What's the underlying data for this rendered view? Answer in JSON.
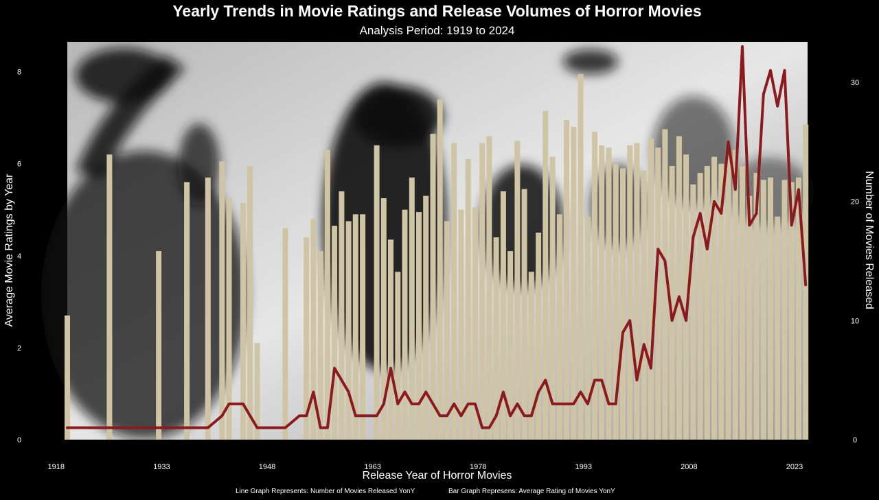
{
  "chart_data": {
    "type": "bar+line",
    "title": "Yearly Trends in Movie Ratings and Release Volumes of Horror Movies",
    "subtitle": "Analysis Period: 1919 to 2024",
    "xlabel": "Release Year of Horror Movies",
    "ylabel_left": "Average Movie Ratings by Year",
    "ylabel_right": "Number of Movies Released",
    "captions": {
      "line": "Line Graph Represents: Number of Movies Released YonY",
      "bar": "Bar Graph Represens: Average Rating of Movies YonY"
    },
    "x_ticks": [
      1918,
      1933,
      1948,
      1963,
      1978,
      1993,
      2008,
      2023
    ],
    "y_left_ticks": [
      0,
      2,
      4,
      6,
      8
    ],
    "y_right_ticks": [
      0,
      10,
      20,
      30
    ],
    "y_left_range": [
      0,
      8.65
    ],
    "y_right_range": [
      0,
      33.4
    ],
    "x_range": [
      1918,
      2024
    ],
    "colors": {
      "bars": "#cfc5a5",
      "line": "#8b1a1e",
      "background": "#000000"
    },
    "bars": [
      {
        "year": 1919,
        "rating": 2.7
      },
      {
        "year": 1925,
        "rating": 6.2
      },
      {
        "year": 1932,
        "rating": 4.1
      },
      {
        "year": 1936,
        "rating": 5.6
      },
      {
        "year": 1939,
        "rating": 5.7
      },
      {
        "year": 1941,
        "rating": 6.05
      },
      {
        "year": 1942,
        "rating": 5.25
      },
      {
        "year": 1944,
        "rating": 5.15
      },
      {
        "year": 1945,
        "rating": 5.95
      },
      {
        "year": 1946,
        "rating": 2.1
      },
      {
        "year": 1950,
        "rating": 4.6
      },
      {
        "year": 1953,
        "rating": 4.4
      },
      {
        "year": 1954,
        "rating": 4.8
      },
      {
        "year": 1955,
        "rating": 4.1
      },
      {
        "year": 1956,
        "rating": 6.3
      },
      {
        "year": 1957,
        "rating": 4.65
      },
      {
        "year": 1958,
        "rating": 5.4
      },
      {
        "year": 1959,
        "rating": 4.75
      },
      {
        "year": 1960,
        "rating": 4.9
      },
      {
        "year": 1961,
        "rating": 4.9
      },
      {
        "year": 1962,
        "rating": 0.0
      },
      {
        "year": 1963,
        "rating": 6.4
      },
      {
        "year": 1964,
        "rating": 5.25
      },
      {
        "year": 1965,
        "rating": 4.35
      },
      {
        "year": 1966,
        "rating": 3.65
      },
      {
        "year": 1967,
        "rating": 5.0
      },
      {
        "year": 1968,
        "rating": 5.7
      },
      {
        "year": 1969,
        "rating": 4.95
      },
      {
        "year": 1970,
        "rating": 5.3
      },
      {
        "year": 1971,
        "rating": 6.65
      },
      {
        "year": 1972,
        "rating": 7.4
      },
      {
        "year": 1973,
        "rating": 4.75
      },
      {
        "year": 1974,
        "rating": 6.45
      },
      {
        "year": 1975,
        "rating": 5.0
      },
      {
        "year": 1976,
        "rating": 6.1
      },
      {
        "year": 1977,
        "rating": 5.05
      },
      {
        "year": 1978,
        "rating": 6.45
      },
      {
        "year": 1979,
        "rating": 6.6
      },
      {
        "year": 1980,
        "rating": 4.4
      },
      {
        "year": 1981,
        "rating": 5.4
      },
      {
        "year": 1982,
        "rating": 4.1
      },
      {
        "year": 1983,
        "rating": 6.5
      },
      {
        "year": 1984,
        "rating": 5.45
      },
      {
        "year": 1985,
        "rating": 3.65
      },
      {
        "year": 1986,
        "rating": 4.5
      },
      {
        "year": 1987,
        "rating": 7.15
      },
      {
        "year": 1988,
        "rating": 6.15
      },
      {
        "year": 1989,
        "rating": 4.9
      },
      {
        "year": 1990,
        "rating": 6.95
      },
      {
        "year": 1991,
        "rating": 6.8
      },
      {
        "year": 1992,
        "rating": 7.95
      },
      {
        "year": 1993,
        "rating": 4.85
      },
      {
        "year": 1994,
        "rating": 6.7
      },
      {
        "year": 1995,
        "rating": 6.4
      },
      {
        "year": 1996,
        "rating": 6.35
      },
      {
        "year": 1997,
        "rating": 6.0
      },
      {
        "year": 1998,
        "rating": 5.9
      },
      {
        "year": 1999,
        "rating": 6.4
      },
      {
        "year": 2000,
        "rating": 6.45
      },
      {
        "year": 2001,
        "rating": 5.85
      },
      {
        "year": 2002,
        "rating": 6.55
      },
      {
        "year": 2003,
        "rating": 6.35
      },
      {
        "year": 2004,
        "rating": 6.75
      },
      {
        "year": 2005,
        "rating": 5.95
      },
      {
        "year": 2006,
        "rating": 6.6
      },
      {
        "year": 2007,
        "rating": 6.2
      },
      {
        "year": 2008,
        "rating": 5.55
      },
      {
        "year": 2009,
        "rating": 5.8
      },
      {
        "year": 2010,
        "rating": 5.95
      },
      {
        "year": 2011,
        "rating": 6.15
      },
      {
        "year": 2012,
        "rating": 6.0
      },
      {
        "year": 2013,
        "rating": 6.2
      },
      {
        "year": 2014,
        "rating": 6.3
      },
      {
        "year": 2015,
        "rating": 5.95
      },
      {
        "year": 2016,
        "rating": 5.3
      },
      {
        "year": 2017,
        "rating": 5.8
      },
      {
        "year": 2018,
        "rating": 5.65
      },
      {
        "year": 2019,
        "rating": 5.7
      },
      {
        "year": 2020,
        "rating": 4.85
      },
      {
        "year": 2021,
        "rating": 5.65
      },
      {
        "year": 2022,
        "rating": 5.6
      },
      {
        "year": 2023,
        "rating": 5.7
      },
      {
        "year": 2024,
        "rating": 6.85
      }
    ],
    "line": [
      {
        "year": 1919,
        "count": 1
      },
      {
        "year": 1920,
        "count": 1
      },
      {
        "year": 1921,
        "count": 1
      },
      {
        "year": 1922,
        "count": 1
      },
      {
        "year": 1923,
        "count": 1
      },
      {
        "year": 1924,
        "count": 1
      },
      {
        "year": 1925,
        "count": 1
      },
      {
        "year": 1926,
        "count": 1
      },
      {
        "year": 1927,
        "count": 1
      },
      {
        "year": 1928,
        "count": 1
      },
      {
        "year": 1929,
        "count": 1
      },
      {
        "year": 1930,
        "count": 1
      },
      {
        "year": 1931,
        "count": 1
      },
      {
        "year": 1932,
        "count": 1
      },
      {
        "year": 1933,
        "count": 1
      },
      {
        "year": 1934,
        "count": 1
      },
      {
        "year": 1935,
        "count": 1
      },
      {
        "year": 1936,
        "count": 1
      },
      {
        "year": 1937,
        "count": 1
      },
      {
        "year": 1938,
        "count": 1
      },
      {
        "year": 1939,
        "count": 1
      },
      {
        "year": 1940,
        "count": 1.5
      },
      {
        "year": 1941,
        "count": 2
      },
      {
        "year": 1942,
        "count": 3
      },
      {
        "year": 1943,
        "count": 3
      },
      {
        "year": 1944,
        "count": 3
      },
      {
        "year": 1945,
        "count": 2
      },
      {
        "year": 1946,
        "count": 1
      },
      {
        "year": 1947,
        "count": 1
      },
      {
        "year": 1948,
        "count": 1
      },
      {
        "year": 1949,
        "count": 1
      },
      {
        "year": 1950,
        "count": 1
      },
      {
        "year": 1951,
        "count": 1.5
      },
      {
        "year": 1952,
        "count": 2
      },
      {
        "year": 1953,
        "count": 2
      },
      {
        "year": 1954,
        "count": 4
      },
      {
        "year": 1955,
        "count": 1
      },
      {
        "year": 1956,
        "count": 1
      },
      {
        "year": 1957,
        "count": 6
      },
      {
        "year": 1958,
        "count": 5
      },
      {
        "year": 1959,
        "count": 4
      },
      {
        "year": 1960,
        "count": 2
      },
      {
        "year": 1961,
        "count": 2
      },
      {
        "year": 1962,
        "count": 2
      },
      {
        "year": 1963,
        "count": 2
      },
      {
        "year": 1964,
        "count": 3
      },
      {
        "year": 1965,
        "count": 6
      },
      {
        "year": 1966,
        "count": 3
      },
      {
        "year": 1967,
        "count": 4
      },
      {
        "year": 1968,
        "count": 3
      },
      {
        "year": 1969,
        "count": 3
      },
      {
        "year": 1970,
        "count": 4
      },
      {
        "year": 1971,
        "count": 3
      },
      {
        "year": 1972,
        "count": 2
      },
      {
        "year": 1973,
        "count": 2
      },
      {
        "year": 1974,
        "count": 3
      },
      {
        "year": 1975,
        "count": 2
      },
      {
        "year": 1976,
        "count": 3
      },
      {
        "year": 1977,
        "count": 3
      },
      {
        "year": 1978,
        "count": 1
      },
      {
        "year": 1979,
        "count": 1
      },
      {
        "year": 1980,
        "count": 2
      },
      {
        "year": 1981,
        "count": 4
      },
      {
        "year": 1982,
        "count": 2
      },
      {
        "year": 1983,
        "count": 3
      },
      {
        "year": 1984,
        "count": 2
      },
      {
        "year": 1985,
        "count": 2
      },
      {
        "year": 1986,
        "count": 4
      },
      {
        "year": 1987,
        "count": 5
      },
      {
        "year": 1988,
        "count": 3
      },
      {
        "year": 1989,
        "count": 3
      },
      {
        "year": 1990,
        "count": 3
      },
      {
        "year": 1991,
        "count": 3
      },
      {
        "year": 1992,
        "count": 4
      },
      {
        "year": 1993,
        "count": 3
      },
      {
        "year": 1994,
        "count": 5
      },
      {
        "year": 1995,
        "count": 5
      },
      {
        "year": 1996,
        "count": 3
      },
      {
        "year": 1997,
        "count": 3
      },
      {
        "year": 1998,
        "count": 9
      },
      {
        "year": 1999,
        "count": 10
      },
      {
        "year": 2000,
        "count": 5
      },
      {
        "year": 2001,
        "count": 8
      },
      {
        "year": 2002,
        "count": 6
      },
      {
        "year": 2003,
        "count": 16
      },
      {
        "year": 2004,
        "count": 15
      },
      {
        "year": 2005,
        "count": 10
      },
      {
        "year": 2006,
        "count": 12
      },
      {
        "year": 2007,
        "count": 10
      },
      {
        "year": 2008,
        "count": 17
      },
      {
        "year": 2009,
        "count": 19
      },
      {
        "year": 2010,
        "count": 16
      },
      {
        "year": 2011,
        "count": 20
      },
      {
        "year": 2012,
        "count": 19
      },
      {
        "year": 2013,
        "count": 25
      },
      {
        "year": 2014,
        "count": 21
      },
      {
        "year": 2015,
        "count": 33
      },
      {
        "year": 2016,
        "count": 18
      },
      {
        "year": 2017,
        "count": 19
      },
      {
        "year": 2018,
        "count": 29
      },
      {
        "year": 2019,
        "count": 31
      },
      {
        "year": 2020,
        "count": 28
      },
      {
        "year": 2021,
        "count": 31
      },
      {
        "year": 2022,
        "count": 18
      },
      {
        "year": 2023,
        "count": 21
      },
      {
        "year": 2024,
        "count": 13
      }
    ]
  }
}
